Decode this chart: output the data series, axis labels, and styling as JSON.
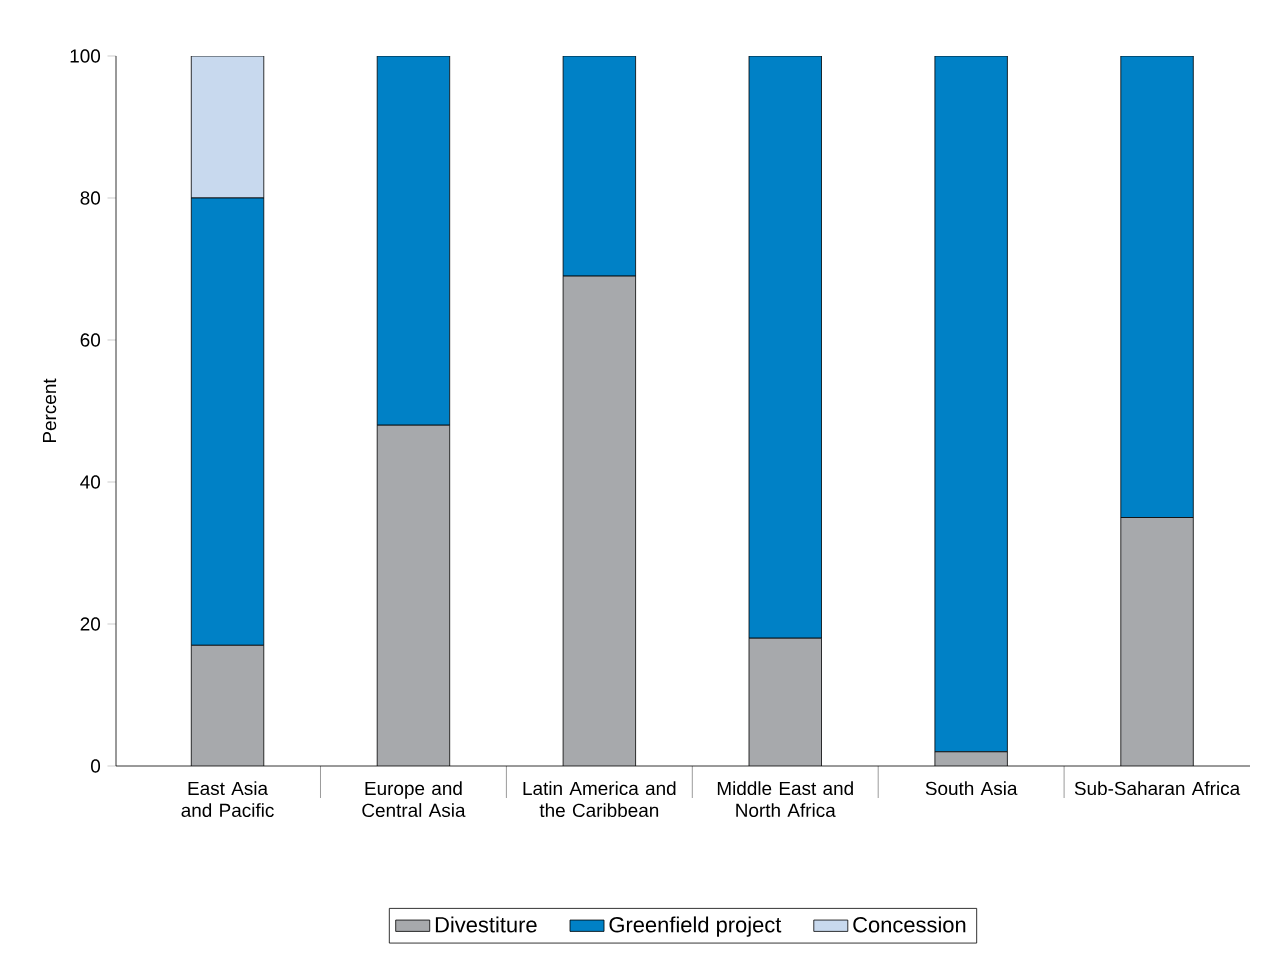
{
  "chart_data": {
    "type": "bar",
    "stacked": true,
    "ylabel": "Percent",
    "categories": [
      "East Asia and Pacific",
      "Europe and Central Asia",
      "Latin America and the Caribbean",
      "Middle East and North Africa",
      "South Asia",
      "Sub-Saharan Africa"
    ],
    "series": [
      {
        "name": "Divestiture",
        "color": "#a7a9ac",
        "values": [
          17,
          48,
          69,
          18,
          2,
          35
        ]
      },
      {
        "name": "Greenfield project",
        "color": "#0081c6",
        "values": [
          63,
          52,
          31,
          82,
          98,
          65
        ]
      },
      {
        "name": "Concession",
        "color": "#c8d9ee",
        "values": [
          20,
          0,
          0,
          0,
          0,
          0
        ]
      }
    ],
    "ylim": [
      0,
      100
    ],
    "yticks": [
      0,
      20,
      40,
      60,
      80,
      100
    ],
    "grid": false,
    "legend": "bottom"
  }
}
